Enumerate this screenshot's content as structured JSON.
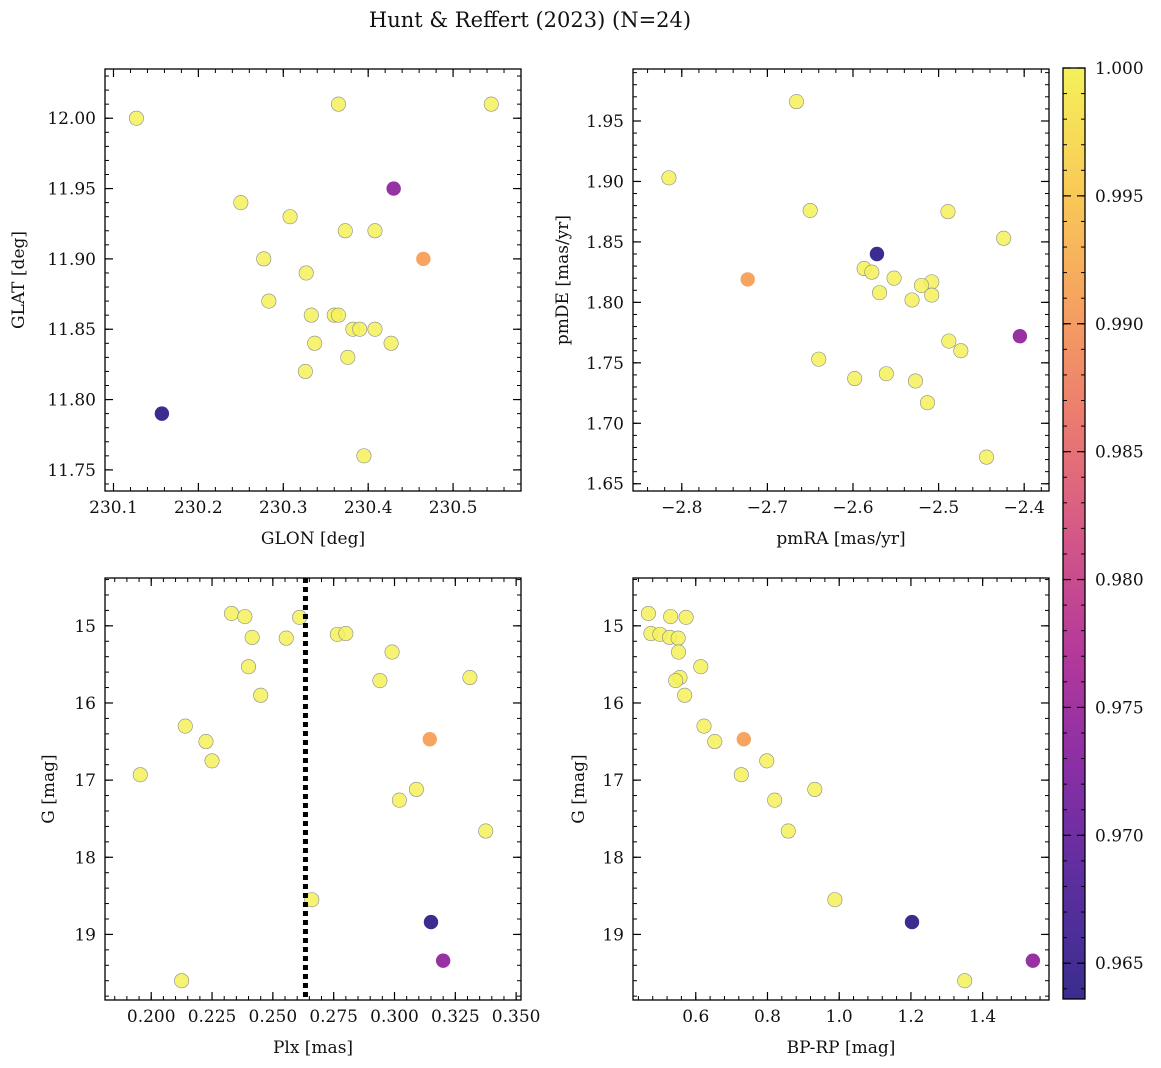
{
  "figure_title": "Hunt & Reffert (2023) (N=24)",
  "colors": {
    "point_edge": "#8a8a8a",
    "vline": "#000000",
    "axis": "#000000",
    "colormap": [
      "#3a2d8f",
      "#5c2e9f",
      "#8a2fa5",
      "#b5399a",
      "#d55887",
      "#ec7c6f",
      "#f6a35f",
      "#f9cc57",
      "#f4f15a"
    ]
  },
  "colorbar": {
    "min": 0.9636,
    "max": 1.0,
    "ticks": [
      0.965,
      0.97,
      0.975,
      0.98,
      0.985,
      0.99,
      0.995,
      1.0
    ],
    "tick_labels": [
      "0.965",
      "0.970",
      "0.975",
      "0.980",
      "0.985",
      "0.990",
      "0.995",
      "1.000"
    ]
  },
  "chart_data": [
    {
      "type": "scatter",
      "id": "glon-glat",
      "xlabel": "GLON [deg]",
      "ylabel": "GLAT [deg]",
      "xlim": [
        230.09,
        230.58
      ],
      "ylim": [
        11.735,
        12.035
      ],
      "y_inverted": false,
      "xticks": [
        230.1,
        230.2,
        230.3,
        230.4,
        230.5
      ],
      "xtick_labels": [
        "230.1",
        "230.2",
        "230.3",
        "230.4",
        "230.5"
      ],
      "yticks": [
        11.75,
        11.8,
        11.85,
        11.9,
        11.95,
        12.0
      ],
      "ytick_labels": [
        "11.75",
        "11.80",
        "11.85",
        "11.90",
        "11.95",
        "12.00"
      ],
      "x_minor": 0.02,
      "y_minor": 0.01,
      "points": [
        {
          "x": 230.127,
          "y": 12.0,
          "c": 1.0
        },
        {
          "x": 230.365,
          "y": 12.01,
          "c": 1.0
        },
        {
          "x": 230.545,
          "y": 12.01,
          "c": 1.0
        },
        {
          "x": 230.43,
          "y": 11.95,
          "c": 0.974
        },
        {
          "x": 230.25,
          "y": 11.94,
          "c": 1.0
        },
        {
          "x": 230.308,
          "y": 11.93,
          "c": 1.0
        },
        {
          "x": 230.373,
          "y": 11.92,
          "c": 1.0
        },
        {
          "x": 230.408,
          "y": 11.92,
          "c": 1.0
        },
        {
          "x": 230.277,
          "y": 11.9,
          "c": 1.0
        },
        {
          "x": 230.465,
          "y": 11.9,
          "c": 0.991
        },
        {
          "x": 230.327,
          "y": 11.89,
          "c": 1.0
        },
        {
          "x": 230.283,
          "y": 11.87,
          "c": 1.0
        },
        {
          "x": 230.333,
          "y": 11.86,
          "c": 1.0
        },
        {
          "x": 230.36,
          "y": 11.86,
          "c": 1.0
        },
        {
          "x": 230.365,
          "y": 11.86,
          "c": 1.0
        },
        {
          "x": 230.382,
          "y": 11.85,
          "c": 1.0
        },
        {
          "x": 230.39,
          "y": 11.85,
          "c": 1.0
        },
        {
          "x": 230.408,
          "y": 11.85,
          "c": 1.0
        },
        {
          "x": 230.337,
          "y": 11.84,
          "c": 1.0
        },
        {
          "x": 230.427,
          "y": 11.84,
          "c": 1.0
        },
        {
          "x": 230.376,
          "y": 11.83,
          "c": 1.0
        },
        {
          "x": 230.326,
          "y": 11.82,
          "c": 1.0
        },
        {
          "x": 230.157,
          "y": 11.79,
          "c": 0.9636
        },
        {
          "x": 230.395,
          "y": 11.76,
          "c": 1.0
        }
      ]
    },
    {
      "type": "scatter",
      "id": "pmra-pmde",
      "xlabel": "pmRA [mas/yr]",
      "ylabel": "pmDE [mas/yr]",
      "xlim": [
        -2.857,
        -2.371
      ],
      "ylim": [
        1.644,
        1.993
      ],
      "y_inverted": false,
      "xticks": [
        -2.8,
        -2.7,
        -2.6,
        -2.5,
        -2.4
      ],
      "xtick_labels": [
        "−2.8",
        "−2.7",
        "−2.6",
        "−2.5",
        "−2.4"
      ],
      "yticks": [
        1.65,
        1.7,
        1.75,
        1.8,
        1.85,
        1.9,
        1.95
      ],
      "ytick_labels": [
        "1.65",
        "1.70",
        "1.75",
        "1.80",
        "1.85",
        "1.90",
        "1.95"
      ],
      "x_minor": 0.02,
      "y_minor": 0.01,
      "points": [
        {
          "x": -2.666,
          "y": 1.966,
          "c": 1.0
        },
        {
          "x": -2.815,
          "y": 1.903,
          "c": 1.0
        },
        {
          "x": -2.65,
          "y": 1.876,
          "c": 1.0
        },
        {
          "x": -2.489,
          "y": 1.875,
          "c": 1.0
        },
        {
          "x": -2.424,
          "y": 1.853,
          "c": 1.0
        },
        {
          "x": -2.572,
          "y": 1.84,
          "c": 0.9636
        },
        {
          "x": -2.587,
          "y": 1.828,
          "c": 1.0
        },
        {
          "x": -2.578,
          "y": 1.825,
          "c": 1.0
        },
        {
          "x": -2.552,
          "y": 1.82,
          "c": 1.0
        },
        {
          "x": -2.723,
          "y": 1.819,
          "c": 0.991
        },
        {
          "x": -2.508,
          "y": 1.817,
          "c": 1.0
        },
        {
          "x": -2.52,
          "y": 1.814,
          "c": 1.0
        },
        {
          "x": -2.569,
          "y": 1.808,
          "c": 1.0
        },
        {
          "x": -2.508,
          "y": 1.806,
          "c": 1.0
        },
        {
          "x": -2.531,
          "y": 1.802,
          "c": 1.0
        },
        {
          "x": -2.405,
          "y": 1.772,
          "c": 0.974
        },
        {
          "x": -2.488,
          "y": 1.768,
          "c": 1.0
        },
        {
          "x": -2.474,
          "y": 1.76,
          "c": 1.0
        },
        {
          "x": -2.64,
          "y": 1.753,
          "c": 1.0
        },
        {
          "x": -2.561,
          "y": 1.741,
          "c": 1.0
        },
        {
          "x": -2.598,
          "y": 1.737,
          "c": 1.0
        },
        {
          "x": -2.527,
          "y": 1.735,
          "c": 1.0
        },
        {
          "x": -2.513,
          "y": 1.717,
          "c": 1.0
        },
        {
          "x": -2.444,
          "y": 1.672,
          "c": 1.0
        }
      ]
    },
    {
      "type": "scatter",
      "id": "plx-g",
      "xlabel": "Plx [mas]",
      "ylabel": "G [mag]",
      "xlim": [
        0.181,
        0.352
      ],
      "ylim": [
        14.38,
        19.85
      ],
      "y_inverted": true,
      "xticks": [
        0.2,
        0.225,
        0.25,
        0.275,
        0.3,
        0.325,
        0.35
      ],
      "xtick_labels": [
        "0.200",
        "0.225",
        "0.250",
        "0.275",
        "0.300",
        "0.325",
        "0.350"
      ],
      "yticks": [
        15,
        16,
        17,
        18,
        19
      ],
      "ytick_labels": [
        "15",
        "16",
        "17",
        "18",
        "19"
      ],
      "x_minor": 0.005,
      "y_minor": 0.2,
      "vline": {
        "x": 0.2634,
        "style": "dotted"
      },
      "points": [
        {
          "x": 0.233,
          "y": 14.84,
          "c": 1.0
        },
        {
          "x": 0.2385,
          "y": 14.88,
          "c": 1.0
        },
        {
          "x": 0.261,
          "y": 14.89,
          "c": 1.0
        },
        {
          "x": 0.2765,
          "y": 15.11,
          "c": 1.0
        },
        {
          "x": 0.28,
          "y": 15.1,
          "c": 1.0
        },
        {
          "x": 0.2415,
          "y": 15.15,
          "c": 1.0
        },
        {
          "x": 0.2555,
          "y": 15.16,
          "c": 1.0
        },
        {
          "x": 0.299,
          "y": 15.34,
          "c": 1.0
        },
        {
          "x": 0.24,
          "y": 15.53,
          "c": 1.0
        },
        {
          "x": 0.331,
          "y": 15.67,
          "c": 1.0
        },
        {
          "x": 0.294,
          "y": 15.71,
          "c": 1.0
        },
        {
          "x": 0.245,
          "y": 15.9,
          "c": 1.0
        },
        {
          "x": 0.214,
          "y": 16.3,
          "c": 1.0
        },
        {
          "x": 0.3145,
          "y": 16.47,
          "c": 0.991
        },
        {
          "x": 0.2225,
          "y": 16.5,
          "c": 1.0
        },
        {
          "x": 0.225,
          "y": 16.75,
          "c": 1.0
        },
        {
          "x": 0.1955,
          "y": 16.93,
          "c": 1.0
        },
        {
          "x": 0.309,
          "y": 17.12,
          "c": 1.0
        },
        {
          "x": 0.302,
          "y": 17.26,
          "c": 1.0
        },
        {
          "x": 0.3375,
          "y": 17.66,
          "c": 1.0
        },
        {
          "x": 0.266,
          "y": 18.55,
          "c": 1.0
        },
        {
          "x": 0.315,
          "y": 18.84,
          "c": 0.9636
        },
        {
          "x": 0.32,
          "y": 19.34,
          "c": 0.974
        },
        {
          "x": 0.2125,
          "y": 19.6,
          "c": 1.0
        }
      ]
    },
    {
      "type": "scatter",
      "id": "bprp-g",
      "xlabel": "BP-RP [mag]",
      "ylabel": "G [mag]",
      "xlim": [
        0.425,
        1.585
      ],
      "ylim": [
        14.38,
        19.85
      ],
      "y_inverted": true,
      "xticks": [
        0.6,
        0.8,
        1.0,
        1.2,
        1.4
      ],
      "xtick_labels": [
        "0.6",
        "0.8",
        "1.0",
        "1.2",
        "1.4"
      ],
      "yticks": [
        15,
        16,
        17,
        18,
        19
      ],
      "ytick_labels": [
        "15",
        "16",
        "17",
        "18",
        "19"
      ],
      "x_minor": 0.04,
      "y_minor": 0.2,
      "points": [
        {
          "x": 0.468,
          "y": 14.84,
          "c": 1.0
        },
        {
          "x": 0.53,
          "y": 14.88,
          "c": 1.0
        },
        {
          "x": 0.573,
          "y": 14.89,
          "c": 1.0
        },
        {
          "x": 0.475,
          "y": 15.1,
          "c": 1.0
        },
        {
          "x": 0.5,
          "y": 15.11,
          "c": 1.0
        },
        {
          "x": 0.527,
          "y": 15.15,
          "c": 1.0
        },
        {
          "x": 0.551,
          "y": 15.16,
          "c": 1.0
        },
        {
          "x": 0.552,
          "y": 15.34,
          "c": 1.0
        },
        {
          "x": 0.614,
          "y": 15.53,
          "c": 1.0
        },
        {
          "x": 0.556,
          "y": 15.67,
          "c": 1.0
        },
        {
          "x": 0.544,
          "y": 15.71,
          "c": 1.0
        },
        {
          "x": 0.569,
          "y": 15.9,
          "c": 1.0
        },
        {
          "x": 0.623,
          "y": 16.3,
          "c": 1.0
        },
        {
          "x": 0.734,
          "y": 16.47,
          "c": 0.991
        },
        {
          "x": 0.653,
          "y": 16.5,
          "c": 1.0
        },
        {
          "x": 0.798,
          "y": 16.75,
          "c": 1.0
        },
        {
          "x": 0.727,
          "y": 16.93,
          "c": 1.0
        },
        {
          "x": 0.932,
          "y": 17.12,
          "c": 1.0
        },
        {
          "x": 0.82,
          "y": 17.26,
          "c": 1.0
        },
        {
          "x": 0.858,
          "y": 17.66,
          "c": 1.0
        },
        {
          "x": 0.988,
          "y": 18.55,
          "c": 1.0
        },
        {
          "x": 1.203,
          "y": 18.84,
          "c": 0.9636
        },
        {
          "x": 1.54,
          "y": 19.34,
          "c": 0.974
        },
        {
          "x": 1.35,
          "y": 19.6,
          "c": 1.0
        }
      ]
    }
  ]
}
